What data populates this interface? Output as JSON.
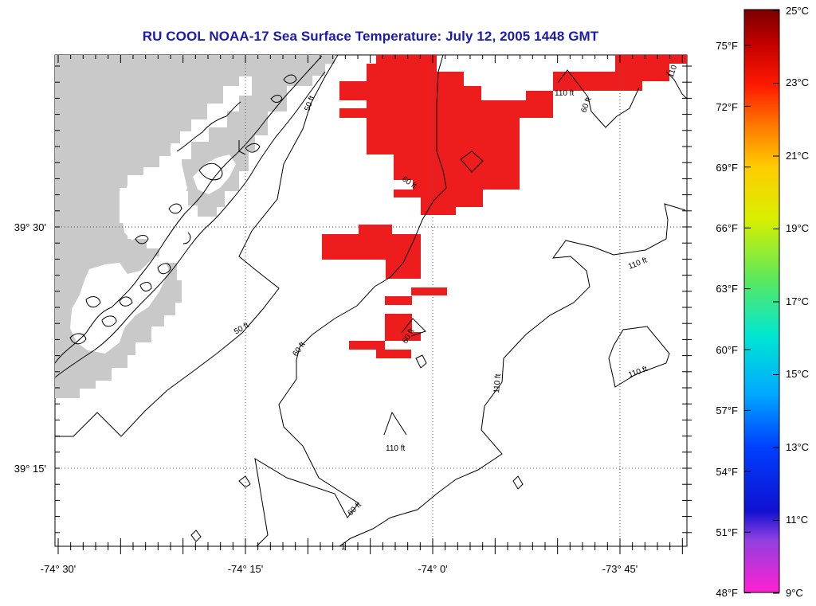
{
  "title": "RU COOL  NOAA-17  Sea Surface Temperature:  July 12, 2005 1448 GMT",
  "colors": {
    "title": "#1a1ab0",
    "land": "#c9c9c9",
    "sst_patch": "#ee1d1d",
    "grid": "#555555"
  },
  "map": {
    "lon_labels": [
      "-74° 30'",
      "-74° 15'",
      "-74° 0'",
      "-73° 45'"
    ],
    "lat_labels": [
      "39° 30'",
      "39° 15'"
    ],
    "contour_labels": [
      "50 ft",
      "50 ft",
      "60 ft",
      "60 ft",
      "60 ft",
      "60 ft",
      "60 ft",
      "110 ft",
      "110 ft",
      "110 ft",
      "110 ft",
      "110 ft",
      "110"
    ]
  },
  "colorbar": {
    "celsius_labels": [
      "25°C",
      "23°C",
      "21°C",
      "19°C",
      "17°C",
      "15°C",
      "13°C",
      "11°C",
      "9°C"
    ],
    "fahrenheit_labels": [
      "75°F",
      "72°F",
      "69°F",
      "66°F",
      "63°F",
      "60°F",
      "57°F",
      "54°F",
      "51°F",
      "48°F"
    ],
    "range_c": [
      9,
      25
    ],
    "range_f": [
      48,
      77
    ]
  }
}
